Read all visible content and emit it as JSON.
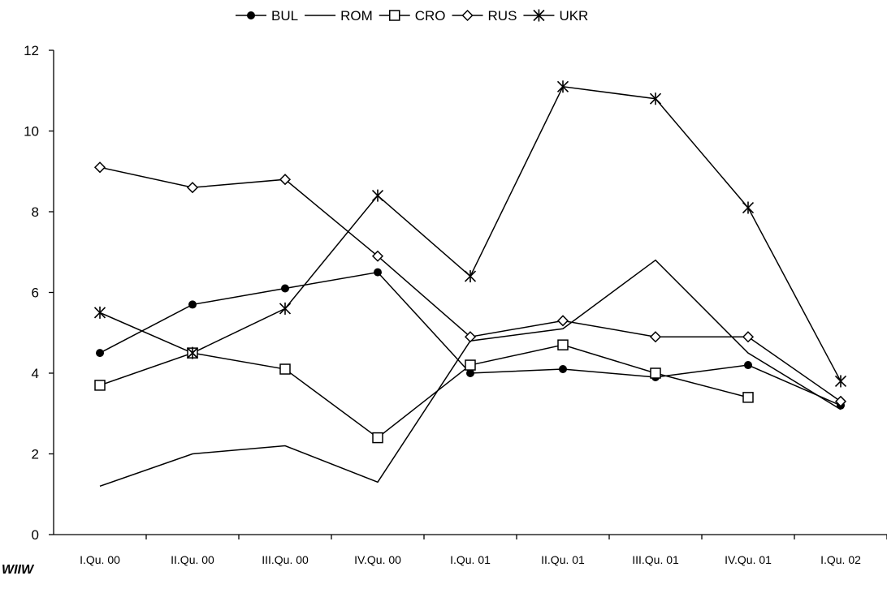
{
  "chart_data": {
    "type": "line",
    "categories": [
      "I.Qu. 00",
      "II.Qu. 00",
      "III.Qu. 00",
      "IV.Qu. 00",
      "I.Qu. 01",
      "II.Qu. 01",
      "III.Qu. 01",
      "IV.Qu. 01",
      "I.Qu. 02"
    ],
    "ylim": [
      0,
      12
    ],
    "yticks": [
      0,
      2,
      4,
      6,
      8,
      10,
      12
    ],
    "grid": false,
    "legend": "top",
    "series": [
      {
        "name": "BUL",
        "marker": "circle",
        "values": [
          4.5,
          5.7,
          6.1,
          6.5,
          4.0,
          4.1,
          3.9,
          4.2,
          3.2
        ]
      },
      {
        "name": "ROM",
        "marker": "none",
        "values": [
          1.2,
          2.0,
          2.2,
          1.3,
          4.8,
          5.1,
          6.8,
          4.5,
          3.1
        ]
      },
      {
        "name": "CRO",
        "marker": "square",
        "values": [
          3.7,
          4.5,
          4.1,
          2.4,
          4.2,
          4.7,
          4.0,
          3.4,
          null
        ]
      },
      {
        "name": "RUS",
        "marker": "diamond",
        "values": [
          9.1,
          8.6,
          8.8,
          6.9,
          4.9,
          5.3,
          4.9,
          4.9,
          3.3
        ]
      },
      {
        "name": "UKR",
        "marker": "asterisk",
        "values": [
          5.5,
          4.5,
          5.6,
          8.4,
          6.4,
          11.1,
          10.8,
          8.1,
          3.8
        ]
      }
    ]
  },
  "source": "WIIW"
}
